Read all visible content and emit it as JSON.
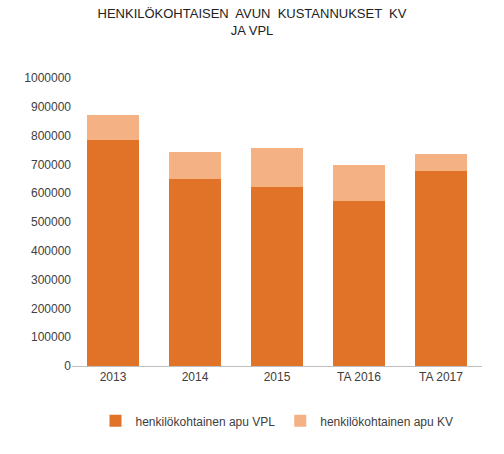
{
  "chart_data": {
    "type": "bar",
    "stacked": true,
    "title": "HENKILÖKOHTAISEN  AVUN  KUSTANNUKSET  KV\nJA VPL",
    "categories": [
      "2013",
      "2014",
      "2015",
      "TA 2016",
      "TA 2017"
    ],
    "series": [
      {
        "name": "henkilökohtainen apu VPL",
        "color": "#e07328",
        "values": [
          785000,
          648000,
          620000,
          573000,
          676000
        ]
      },
      {
        "name": "henkilökohtainen apu KV",
        "color": "#f4b183",
        "values": [
          85000,
          94000,
          138000,
          125000,
          61000
        ]
      }
    ],
    "ylim": [
      0,
      1000000
    ],
    "yticks": [
      0,
      100000,
      200000,
      300000,
      400000,
      500000,
      600000,
      700000,
      800000,
      900000,
      1000000
    ],
    "grid": false,
    "legend": "bottom"
  }
}
